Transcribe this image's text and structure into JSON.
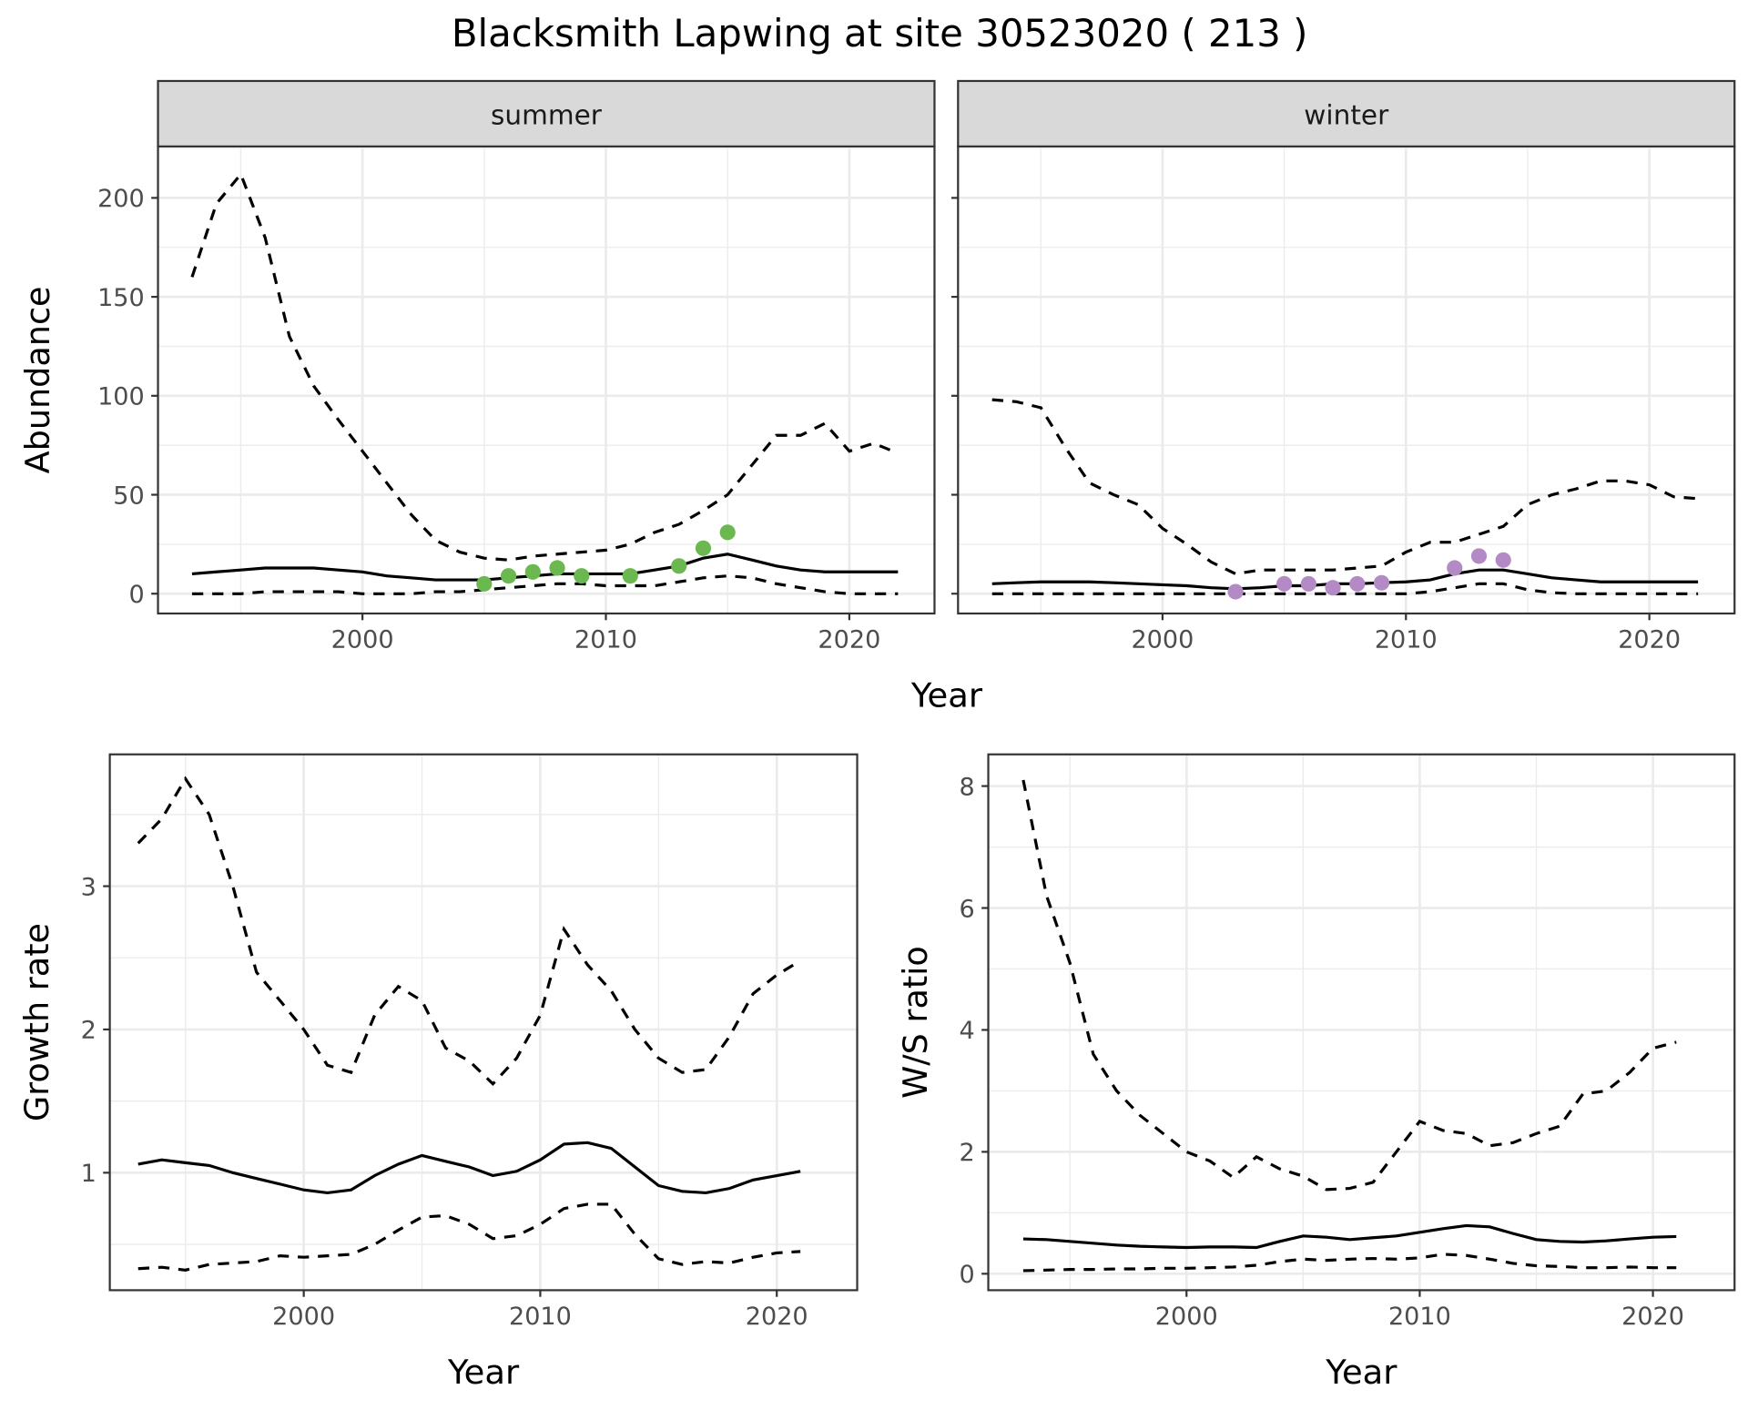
{
  "title": "Blacksmith Lapwing at site 30523020 ( 213 )",
  "colors": {
    "summer_points": "#6ab84f",
    "winter_points": "#b48ac6",
    "line": "#000000",
    "strip_bg": "#d9d9d9",
    "grid": "#ebebeb"
  },
  "chart_data": [
    {
      "type": "line",
      "facet": "summer",
      "xlabel": "Year",
      "ylabel": "Abundance",
      "xlim": [
        1991.6,
        2023.5
      ],
      "ylim": [
        -10,
        226
      ],
      "xticks": [
        2000,
        2010,
        2020
      ],
      "yticks": [
        0,
        50,
        100,
        150,
        200
      ],
      "grid": true,
      "x": [
        1993,
        1994,
        1995,
        1996,
        1997,
        1998,
        1999,
        2000,
        2001,
        2002,
        2003,
        2004,
        2005,
        2006,
        2007,
        2008,
        2009,
        2010,
        2011,
        2012,
        2013,
        2014,
        2015,
        2016,
        2017,
        2018,
        2019,
        2020,
        2021,
        2022
      ],
      "upper": [
        160,
        197,
        212,
        180,
        130,
        105,
        88,
        72,
        56,
        40,
        27,
        21,
        18,
        17,
        19,
        20,
        21,
        22,
        25,
        31,
        35,
        42,
        50,
        65,
        80,
        80,
        86,
        72,
        76,
        71
      ],
      "mean": [
        10,
        11,
        12,
        13,
        13,
        13,
        12,
        11,
        9,
        8,
        7,
        7,
        7,
        8,
        9,
        10,
        10,
        10,
        10,
        12,
        14,
        18,
        20,
        17,
        14,
        12,
        11,
        11,
        11,
        11
      ],
      "lower": [
        0,
        0,
        0,
        1,
        1,
        1,
        1,
        0,
        0,
        0,
        1,
        1,
        2,
        3,
        4,
        5,
        5,
        4,
        4,
        4,
        6,
        8,
        9,
        8,
        5,
        3,
        1,
        0,
        0,
        0
      ],
      "points": {
        "x": [
          2005,
          2006,
          2007,
          2008,
          2009,
          2011,
          2013,
          2014,
          2015
        ],
        "y": [
          5,
          9,
          11,
          13,
          9,
          9,
          14,
          23,
          31
        ]
      }
    },
    {
      "type": "line",
      "facet": "winter",
      "xlabel": "Year",
      "ylabel": "Abundance",
      "xlim": [
        1991.6,
        2023.5
      ],
      "ylim": [
        -10,
        226
      ],
      "xticks": [
        2000,
        2010,
        2020
      ],
      "yticks": [
        0,
        50,
        100,
        150,
        200
      ],
      "grid": true,
      "x": [
        1993,
        1994,
        1995,
        1996,
        1997,
        1998,
        1999,
        2000,
        2001,
        2002,
        2003,
        2004,
        2005,
        2006,
        2007,
        2008,
        2009,
        2010,
        2011,
        2012,
        2013,
        2014,
        2015,
        2016,
        2017,
        2018,
        2019,
        2020,
        2021,
        2022
      ],
      "upper": [
        98,
        97,
        94,
        74,
        56,
        50,
        45,
        33,
        25,
        16,
        10,
        12,
        12,
        12,
        12,
        13,
        14,
        21,
        26,
        26,
        30,
        34,
        45,
        50,
        53,
        57,
        57,
        55,
        49,
        48
      ],
      "mean": [
        5,
        5.5,
        6,
        6,
        6,
        5.5,
        5,
        4.5,
        4,
        3,
        2.5,
        3,
        4,
        4,
        5,
        5,
        5.5,
        6,
        7,
        10,
        12,
        12,
        10,
        8,
        7,
        6,
        6,
        6,
        6,
        6
      ],
      "lower": [
        0,
        0,
        0,
        0,
        0,
        0,
        0,
        0,
        0,
        0,
        0,
        0,
        0,
        0,
        0,
        0,
        0,
        0,
        1,
        3,
        5,
        5,
        2,
        0.5,
        0,
        0,
        0,
        0,
        0,
        0
      ],
      "points": {
        "x": [
          2003,
          2005,
          2006,
          2007,
          2008,
          2009,
          2012,
          2013,
          2014
        ],
        "y": [
          1,
          5,
          5,
          3,
          5,
          5.5,
          13,
          19,
          17
        ]
      }
    },
    {
      "type": "line",
      "xlabel": "Year",
      "ylabel": "Growth rate",
      "xlim": [
        1991.8,
        2023.4
      ],
      "ylim": [
        0.18,
        3.92
      ],
      "xticks": [
        2000,
        2010,
        2020
      ],
      "yticks": [
        1,
        2,
        3
      ],
      "grid": true,
      "x": [
        1993,
        1994,
        1995,
        1996,
        1997,
        1998,
        1999,
        2000,
        2001,
        2002,
        2003,
        2004,
        2005,
        2006,
        2007,
        2008,
        2009,
        2010,
        2011,
        2012,
        2013,
        2014,
        2015,
        2016,
        2017,
        2018,
        2019,
        2020,
        2021
      ],
      "upper": [
        3.3,
        3.47,
        3.75,
        3.5,
        3.0,
        2.4,
        2.2,
        2.0,
        1.75,
        1.7,
        2.1,
        2.3,
        2.2,
        1.87,
        1.78,
        1.62,
        1.8,
        2.1,
        2.7,
        2.45,
        2.27,
        2.0,
        1.8,
        1.7,
        1.72,
        1.95,
        2.25,
        2.38,
        2.48
      ],
      "mean": [
        1.06,
        1.09,
        1.07,
        1.05,
        1.0,
        0.96,
        0.92,
        0.88,
        0.86,
        0.88,
        0.98,
        1.06,
        1.12,
        1.08,
        1.04,
        0.98,
        1.01,
        1.09,
        1.2,
        1.21,
        1.17,
        1.04,
        0.91,
        0.87,
        0.86,
        0.89,
        0.95,
        0.98,
        1.01
      ],
      "lower": [
        0.33,
        0.34,
        0.32,
        0.36,
        0.37,
        0.38,
        0.42,
        0.41,
        0.42,
        0.43,
        0.5,
        0.6,
        0.69,
        0.7,
        0.64,
        0.54,
        0.56,
        0.64,
        0.75,
        0.78,
        0.78,
        0.57,
        0.4,
        0.36,
        0.38,
        0.37,
        0.41,
        0.44,
        0.45
      ]
    },
    {
      "type": "line",
      "xlabel": "Year",
      "ylabel": "W/S ratio",
      "xlim": [
        1991.5,
        2023.5
      ],
      "ylim": [
        -0.27,
        8.52
      ],
      "xticks": [
        2000,
        2010,
        2020
      ],
      "yticks": [
        0,
        2,
        4,
        6,
        8
      ],
      "grid": true,
      "x": [
        1993,
        1994,
        1995,
        1996,
        1997,
        1998,
        1999,
        2000,
        2001,
        2002,
        2003,
        2004,
        2005,
        2006,
        2007,
        2008,
        2009,
        2010,
        2011,
        2012,
        2013,
        2014,
        2015,
        2016,
        2017,
        2018,
        2019,
        2020,
        2021
      ],
      "upper": [
        8.1,
        6.2,
        5.1,
        3.6,
        3.0,
        2.6,
        2.3,
        2.0,
        1.85,
        1.58,
        1.92,
        1.72,
        1.6,
        1.38,
        1.4,
        1.5,
        2.0,
        2.5,
        2.35,
        2.3,
        2.1,
        2.15,
        2.3,
        2.42,
        2.95,
        3.0,
        3.3,
        3.7,
        3.8
      ],
      "mean": [
        0.57,
        0.56,
        0.53,
        0.5,
        0.47,
        0.45,
        0.44,
        0.43,
        0.44,
        0.44,
        0.43,
        0.53,
        0.62,
        0.6,
        0.56,
        0.59,
        0.62,
        0.68,
        0.74,
        0.79,
        0.77,
        0.66,
        0.56,
        0.53,
        0.52,
        0.54,
        0.57,
        0.6,
        0.61
      ],
      "lower": [
        0.05,
        0.06,
        0.07,
        0.07,
        0.08,
        0.08,
        0.09,
        0.09,
        0.1,
        0.11,
        0.14,
        0.2,
        0.24,
        0.22,
        0.24,
        0.25,
        0.24,
        0.26,
        0.32,
        0.3,
        0.24,
        0.17,
        0.13,
        0.12,
        0.1,
        0.1,
        0.11,
        0.1,
        0.1
      ]
    }
  ]
}
